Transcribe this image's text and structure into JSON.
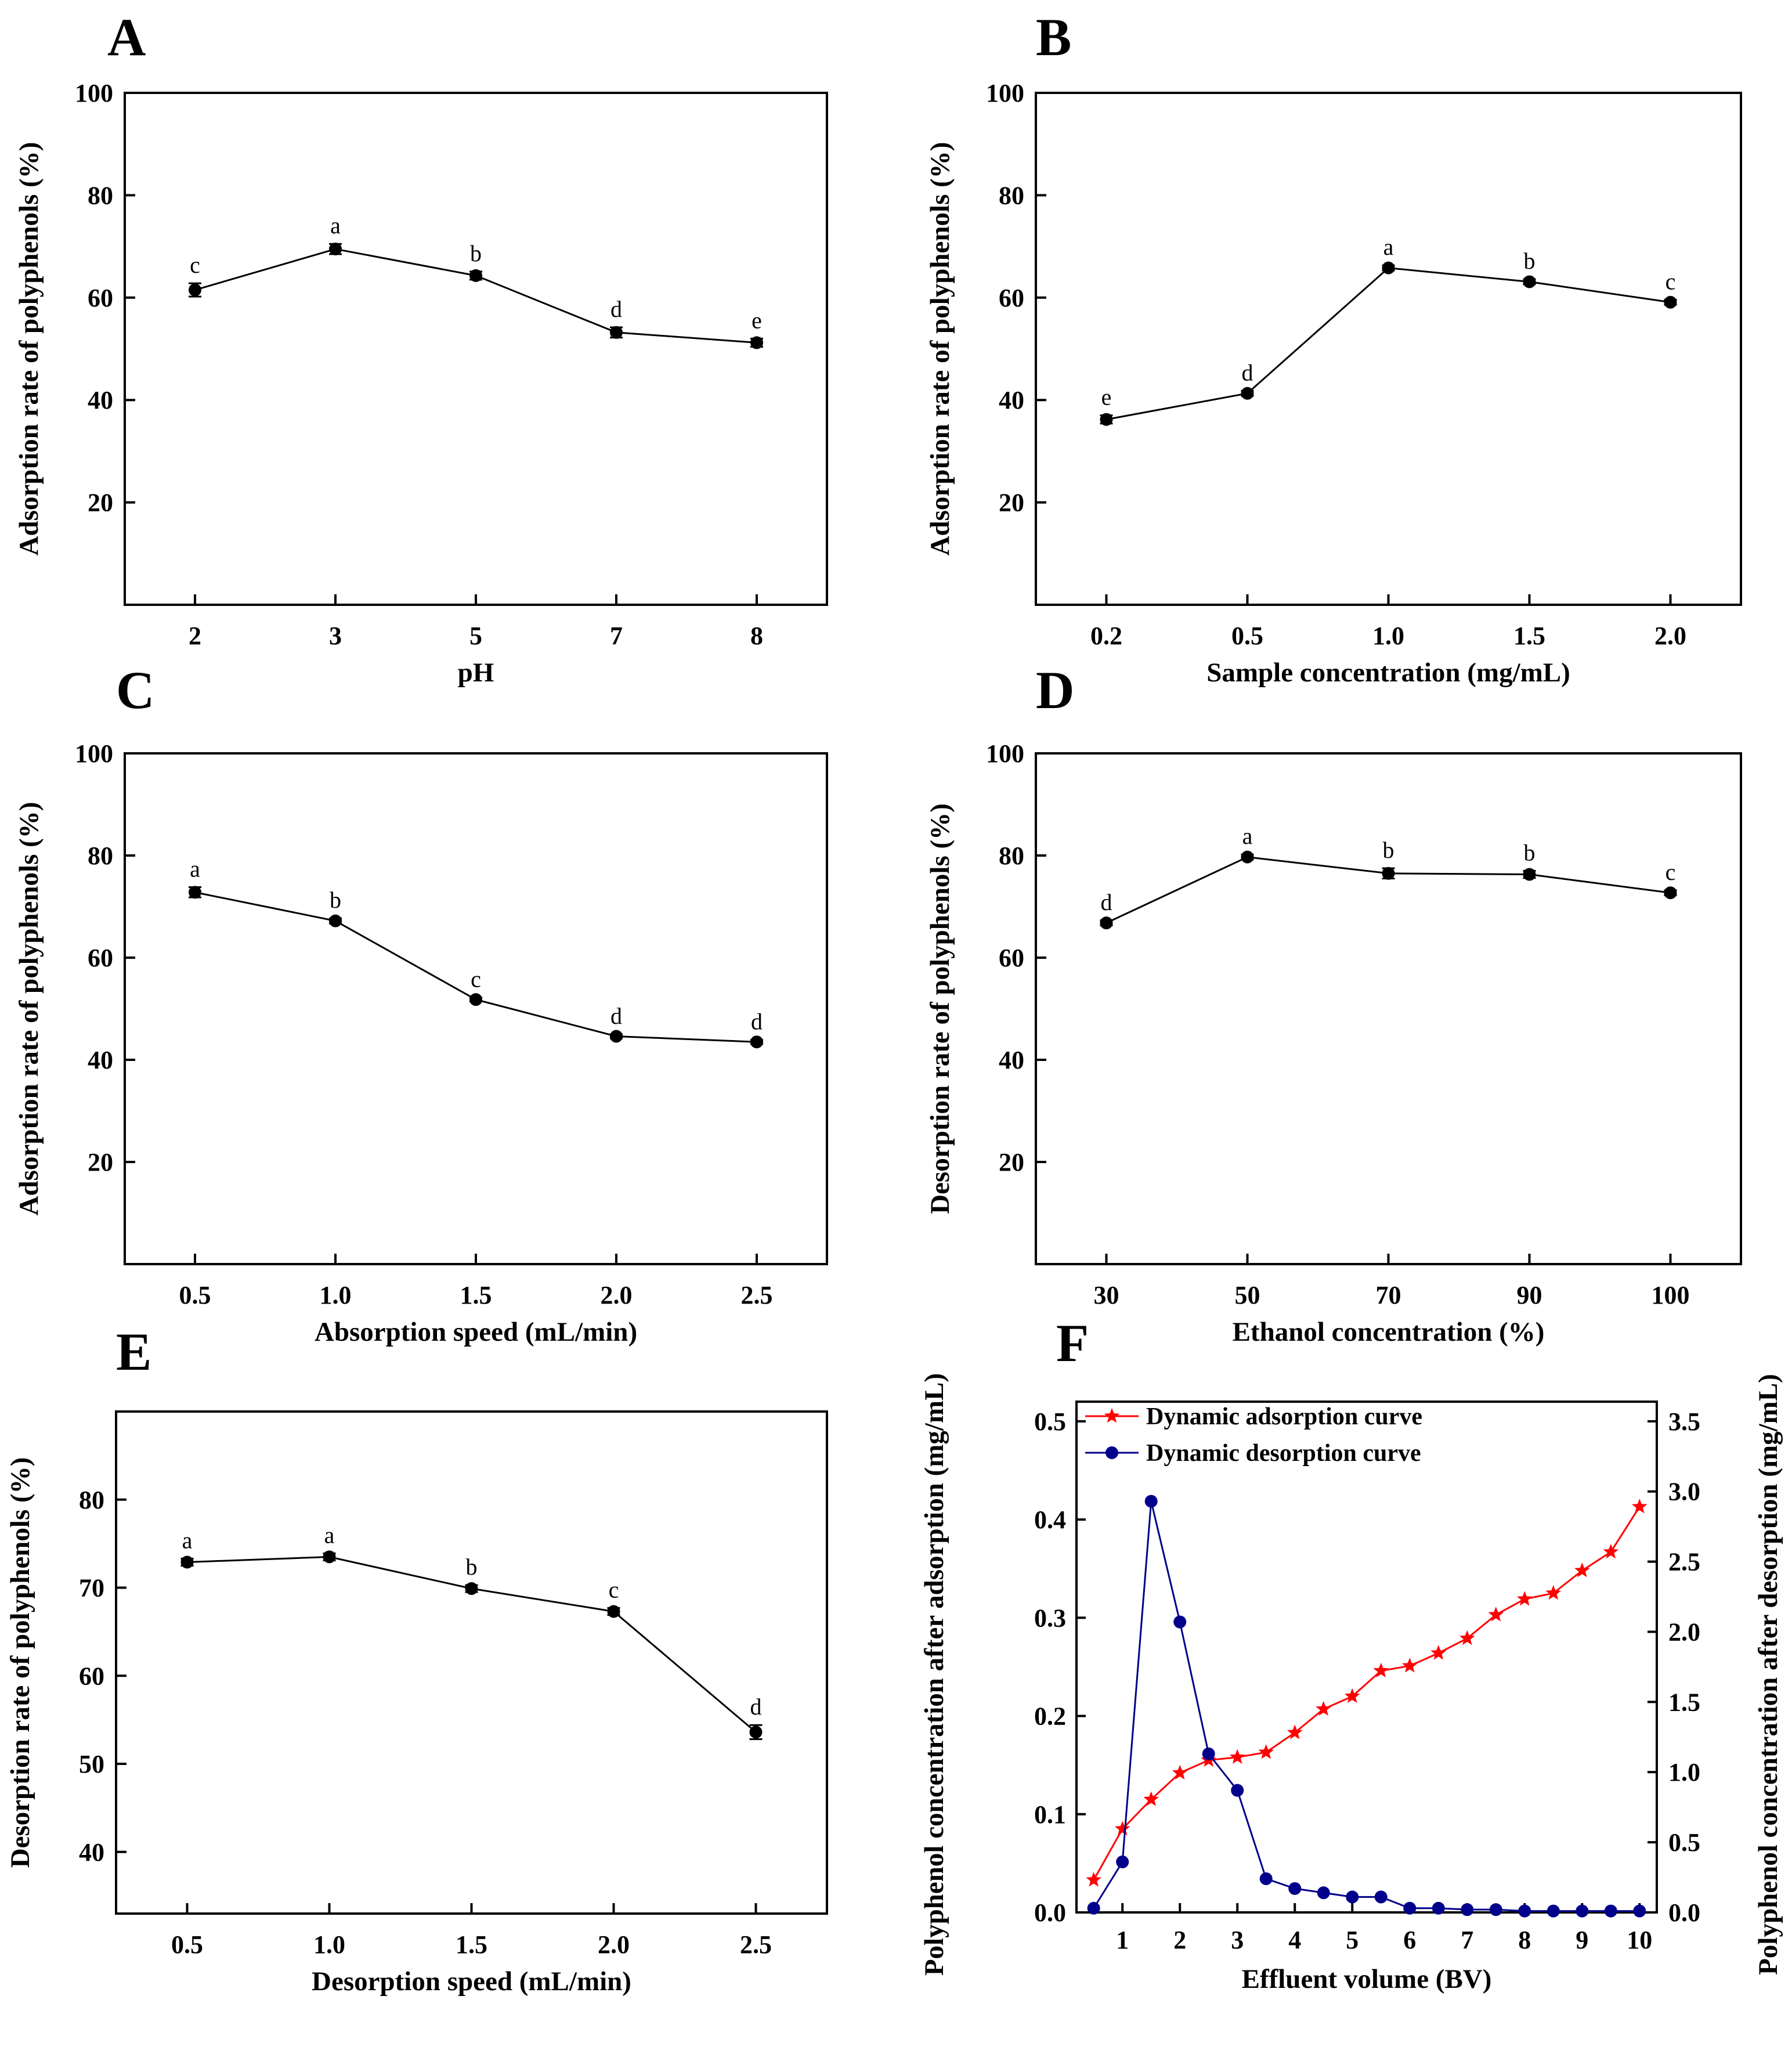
{
  "colors": {
    "adsorption": "#ff0000",
    "desorption": "#00008b",
    "default": "#000000"
  },
  "chart_data": [
    {
      "panel": "A",
      "type": "line",
      "x": [
        "2",
        "3",
        "5",
        "7",
        "8"
      ],
      "y": [
        61.5,
        69.5,
        64.3,
        53.2,
        51.2
      ],
      "err": [
        1.3,
        1.0,
        0.8,
        1.0,
        0.8
      ],
      "sig": [
        "c",
        "a",
        "b",
        "d",
        "e"
      ],
      "xlabel": "pH",
      "ylabel": "Adsorption rate of polyphenols (%)",
      "ylim": [
        0,
        100
      ],
      "yticks": [
        20,
        40,
        60,
        80,
        100
      ]
    },
    {
      "panel": "B",
      "type": "line",
      "x": [
        "0.2",
        "0.5",
        "1.0",
        "1.5",
        "2.0"
      ],
      "y": [
        36.2,
        41.3,
        65.8,
        63.1,
        59.1
      ],
      "err": [
        0.8,
        0.5,
        0.5,
        0.5,
        0.5
      ],
      "sig": [
        "e",
        "d",
        "a",
        "b",
        "c"
      ],
      "xlabel": "Sample concentration (mg/mL)",
      "ylabel": "Adsorption rate of polyphenols (%)",
      "ylim": [
        0,
        100
      ],
      "yticks": [
        20,
        40,
        60,
        80,
        100
      ]
    },
    {
      "panel": "C",
      "type": "line",
      "x": [
        "0.5",
        "1.0",
        "1.5",
        "2.0",
        "2.5"
      ],
      "y": [
        72.8,
        67.2,
        51.8,
        44.6,
        43.5
      ],
      "err": [
        1.0,
        0.5,
        0.4,
        0.4,
        0.4
      ],
      "sig": [
        "a",
        "b",
        "c",
        "d",
        "d"
      ],
      "xlabel": "Absorption speed (mL/min)",
      "ylabel": "Adsorption rate of polyphenols (%)",
      "ylim": [
        0,
        100
      ],
      "yticks": [
        20,
        40,
        60,
        80,
        100
      ]
    },
    {
      "panel": "D",
      "type": "line",
      "x": [
        "30",
        "50",
        "70",
        "90",
        "100"
      ],
      "y": [
        66.8,
        79.7,
        76.5,
        76.3,
        72.7
      ],
      "err": [
        0.5,
        0.5,
        1.0,
        0.7,
        0.5
      ],
      "sig": [
        "d",
        "a",
        "b",
        "b",
        "c"
      ],
      "xlabel": "Ethanol concentration (%)",
      "ylabel": "Desorption rate of polyphenols (%)",
      "ylim": [
        0,
        100
      ],
      "yticks": [
        20,
        40,
        60,
        80,
        100
      ]
    },
    {
      "panel": "E",
      "type": "line",
      "x": [
        "0.5",
        "1.0",
        "1.5",
        "2.0",
        "2.5"
      ],
      "y": [
        72.9,
        73.5,
        69.9,
        67.3,
        53.6
      ],
      "err": [
        0.4,
        0.4,
        0.4,
        0.4,
        0.8
      ],
      "sig": [
        "a",
        "a",
        "b",
        "c",
        "d"
      ],
      "xlabel": "Desorption speed (mL/min)",
      "ylabel": "Desorption rate of polyphenols (%)",
      "ylim": [
        33,
        90
      ],
      "yticks": [
        40,
        50,
        60,
        70,
        80
      ]
    },
    {
      "panel": "F",
      "type": "line",
      "x": [
        0.5,
        1,
        1.5,
        2,
        2.5,
        3,
        3.5,
        4,
        4.5,
        5,
        5.5,
        6,
        6.5,
        7,
        7.5,
        8,
        8.5,
        9,
        9.5,
        10
      ],
      "series": [
        {
          "name": "Dynamic adsorption curve",
          "axis": "left",
          "marker": "star",
          "values": [
            0.033,
            0.085,
            0.115,
            0.142,
            0.155,
            0.158,
            0.163,
            0.183,
            0.207,
            0.22,
            0.246,
            0.251,
            0.264,
            0.279,
            0.303,
            0.319,
            0.325,
            0.348,
            0.367,
            0.413
          ]
        },
        {
          "name": "Dynamic desorption curve",
          "axis": "right",
          "marker": "circle",
          "values": [
            0.03,
            0.36,
            2.93,
            2.07,
            1.13,
            0.87,
            0.24,
            0.17,
            0.14,
            0.11,
            0.11,
            0.03,
            0.03,
            0.02,
            0.02,
            0.01,
            0.01,
            0.01,
            0.01,
            0.01
          ]
        }
      ],
      "xlabel": "Effluent volume (BV)",
      "ylabel_left": "Polyphenol concentration after adsorption (mg/mL)",
      "ylabel_right": "Polyphenol concentration after desorption (mg/mL)",
      "xlim": [
        0.2,
        10.3
      ],
      "xticks": [
        1,
        2,
        3,
        4,
        5,
        6,
        7,
        8,
        9,
        10
      ],
      "ylim_left": [
        0,
        0.52
      ],
      "yticks_left": [
        "0.0",
        "0.1",
        "0.2",
        "0.3",
        "0.4",
        "0.5"
      ],
      "ylim_right": [
        0,
        3.64
      ],
      "yticks_right": [
        "0.0",
        "0.5",
        "1.0",
        "1.5",
        "2.0",
        "2.5",
        "3.0",
        "3.5"
      ]
    }
  ]
}
